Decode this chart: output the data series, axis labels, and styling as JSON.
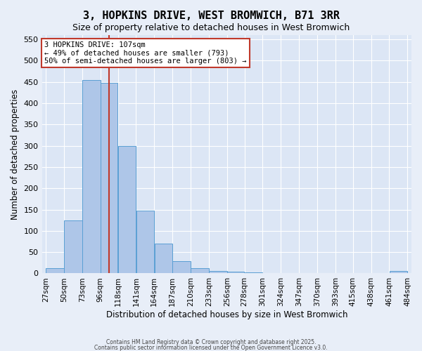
{
  "title": "3, HOPKINS DRIVE, WEST BROMWICH, B71 3RR",
  "subtitle": "Size of property relative to detached houses in West Bromwich",
  "xlabel": "Distribution of detached houses by size in West Bromwich",
  "ylabel": "Number of detached properties",
  "bin_edges": [
    "27sqm",
    "50sqm",
    "73sqm",
    "96sqm",
    "118sqm",
    "141sqm",
    "164sqm",
    "187sqm",
    "210sqm",
    "233sqm",
    "256sqm",
    "278sqm",
    "301sqm",
    "324sqm",
    "347sqm",
    "370sqm",
    "393sqm",
    "415sqm",
    "438sqm",
    "461sqm",
    "484sqm"
  ],
  "bin_edges_numeric": [
    27,
    50,
    73,
    96,
    118,
    141,
    164,
    187,
    210,
    233,
    256,
    278,
    301,
    324,
    347,
    370,
    393,
    415,
    438,
    461,
    484
  ],
  "values": [
    12,
    125,
    455,
    447,
    300,
    148,
    70,
    28,
    12,
    6,
    4,
    2,
    1,
    0,
    1,
    0,
    0,
    1,
    0,
    5
  ],
  "bar_color": "#aec6e8",
  "bar_edgecolor": "#5a9fd4",
  "highlight_color": "#c0392b",
  "property_size": 107,
  "annotation_line1": "3 HOPKINS DRIVE: 107sqm",
  "annotation_line2": "← 49% of detached houses are smaller (793)",
  "annotation_line3": "50% of semi-detached houses are larger (803) →",
  "annotation_box_edgecolor": "#c0392b",
  "vline_x": 107,
  "ylim": [
    0,
    560
  ],
  "yticks": [
    0,
    50,
    100,
    150,
    200,
    250,
    300,
    350,
    400,
    450,
    500,
    550
  ],
  "footer1": "Contains HM Land Registry data © Crown copyright and database right 2025.",
  "footer2": "Contains public sector information licensed under the Open Government Licence v3.0.",
  "bg_color": "#e8eef8",
  "plot_bg_color": "#dce6f5"
}
